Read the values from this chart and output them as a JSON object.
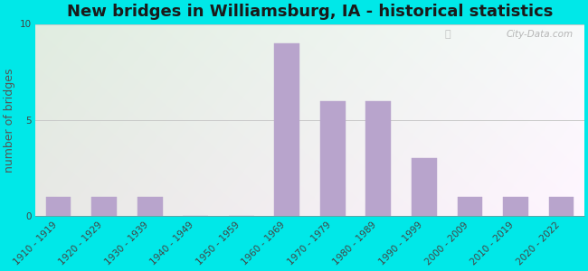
{
  "title": "New bridges in Williamsburg, IA - historical statistics",
  "ylabel": "number of bridges",
  "categories": [
    "1910 - 1919",
    "1920 - 1929",
    "1930 - 1939",
    "1940 - 1949",
    "1950 - 1959",
    "1960 - 1969",
    "1970 - 1979",
    "1980 - 1989",
    "1990 - 1999",
    "2000 - 2009",
    "2010 - 2019",
    "2020 - 2022"
  ],
  "values": [
    1,
    1,
    1,
    0,
    0,
    9,
    6,
    6,
    3,
    1,
    1,
    1
  ],
  "bar_color": "#b8a4cc",
  "ylim": [
    0,
    10
  ],
  "yticks": [
    0,
    5,
    10
  ],
  "background_outer": "#00e8e8",
  "grid_color": "#c8c8c8",
  "title_fontsize": 13,
  "axis_label_fontsize": 9,
  "tick_fontsize": 7.5,
  "watermark_text": "City-Data.com",
  "plot_bg_top_left": "#d8ece0",
  "plot_bg_bottom_right": "#f0eef8"
}
